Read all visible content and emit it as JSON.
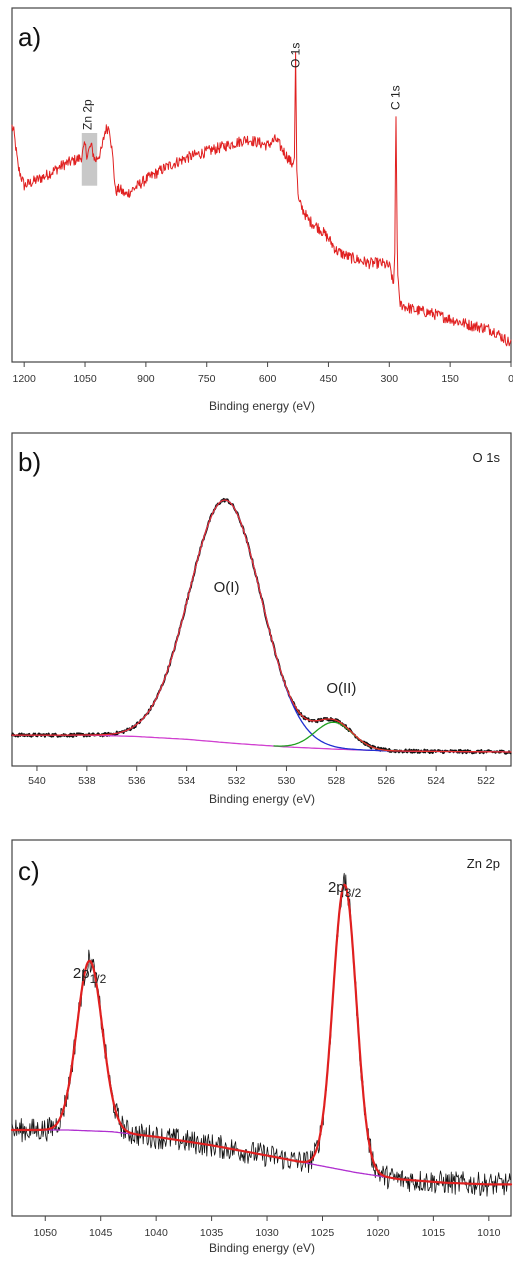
{
  "chart_data": [
    {
      "type": "line",
      "panel_letter": "a)",
      "xlabel": "Binding energy (eV)",
      "ylabel": "",
      "xlim": [
        1230,
        0
      ],
      "x_ticks": [
        1200,
        1050,
        900,
        750,
        600,
        450,
        300,
        150,
        0
      ],
      "grid": false,
      "annotations": [
        {
          "text": "Zn 2p",
          "x": 1044
        },
        {
          "text": "O 1s",
          "x": 531
        },
        {
          "text": "C 1s",
          "x": 285
        }
      ],
      "highlight_band": [
        1058,
        1020
      ],
      "series": [
        {
          "color": "#e02020",
          "x": [
            1230,
            1225,
            1215,
            1200,
            1150,
            1100,
            1060,
            1050,
            1045,
            1035,
            1025,
            1010,
            1000,
            990,
            980,
            975,
            965,
            950,
            900,
            850,
            800,
            750,
            700,
            650,
            600,
            580,
            560,
            540,
            534,
            531,
            528,
            524,
            520,
            500,
            470,
            450,
            430,
            400,
            350,
            320,
            300,
            295,
            290,
            286,
            284,
            280,
            275,
            260,
            240,
            200,
            150,
            100,
            60,
            40,
            20,
            10,
            0
          ],
          "y": [
            0.72,
            0.7,
            0.59,
            0.53,
            0.56,
            0.6,
            0.62,
            0.66,
            0.63,
            0.66,
            0.61,
            0.64,
            0.71,
            0.72,
            0.6,
            0.51,
            0.52,
            0.5,
            0.55,
            0.59,
            0.62,
            0.64,
            0.66,
            0.68,
            0.66,
            0.68,
            0.64,
            0.6,
            0.62,
            0.96,
            0.58,
            0.48,
            0.47,
            0.42,
            0.39,
            0.36,
            0.32,
            0.3,
            0.28,
            0.28,
            0.27,
            0.25,
            0.2,
            0.33,
            0.82,
            0.28,
            0.15,
            0.14,
            0.13,
            0.12,
            0.1,
            0.08,
            0.07,
            0.06,
            0.04,
            0.03,
            0.02
          ],
          "noise": 0.018
        }
      ]
    },
    {
      "type": "line",
      "panel_letter": "b)",
      "title": "O 1s",
      "xlabel": "Binding energy (eV)",
      "ylabel": "",
      "xlim": [
        541,
        521
      ],
      "x_ticks": [
        540,
        538,
        536,
        534,
        532,
        530,
        528,
        526,
        524,
        522
      ],
      "grid": false,
      "annotations": [
        {
          "text": "O(I)",
          "x": 532.4,
          "y": 0.52
        },
        {
          "text": "O(II)",
          "x": 527.8,
          "y": 0.27
        }
      ],
      "series": [
        {
          "role": "baseline",
          "color": "#d040d0",
          "x": [
            541,
            538,
            536,
            534,
            532,
            530,
            528,
            526,
            524,
            521
          ],
          "y": [
            0.06,
            0.06,
            0.055,
            0.045,
            0.03,
            0.018,
            0.01,
            0.004,
            0.002,
            0.0
          ]
        },
        {
          "role": "component O(I)",
          "color": "#2030d0",
          "center": 532.45,
          "height": 0.86,
          "sigma": 1.45,
          "range": [
            537,
            526
          ]
        },
        {
          "role": "component O(II)",
          "color": "#20a020",
          "center": 528.1,
          "height": 0.095,
          "sigma": 0.75,
          "range": [
            530.5,
            525.5
          ]
        },
        {
          "role": "envelope",
          "color": "#e83030",
          "range": [
            541,
            521
          ]
        },
        {
          "role": "measured",
          "color": "#111111",
          "range": [
            541,
            521
          ],
          "noise": 0.006
        }
      ]
    },
    {
      "type": "line",
      "panel_letter": "c)",
      "title": "Zn 2p",
      "xlabel": "Binding energy (eV)",
      "ylabel": "",
      "xlim": [
        1053,
        1008
      ],
      "x_ticks": [
        1050,
        1045,
        1040,
        1035,
        1030,
        1025,
        1020,
        1015,
        1010
      ],
      "grid": false,
      "annotations": [
        {
          "text": "2p",
          "sub": "1/2",
          "x": 1046.0
        },
        {
          "text": "2p",
          "sub": "3/2",
          "x": 1023.0
        }
      ],
      "series": [
        {
          "role": "baseline",
          "color": "#b030d0",
          "x": [
            1053,
            1048,
            1044,
            1040,
            1035,
            1030,
            1026,
            1022,
            1018,
            1014,
            1010,
            1008
          ],
          "y": [
            0.2,
            0.2,
            0.195,
            0.18,
            0.155,
            0.125,
            0.1,
            0.075,
            0.055,
            0.045,
            0.04,
            0.04
          ]
        },
        {
          "role": "component 2p1/2",
          "color": "#20a020",
          "center": 1046.0,
          "height": 0.5,
          "sigma": 1.15,
          "range": [
            1050.5,
            1041.5
          ]
        },
        {
          "role": "component 2p3/2",
          "color": "#2040d0",
          "center": 1023.0,
          "height": 0.84,
          "sigma": 1.05,
          "range": [
            1027.5,
            1018.5
          ]
        },
        {
          "role": "envelope",
          "color": "#e02020",
          "range": [
            1053,
            1008
          ]
        },
        {
          "role": "measured",
          "color": "#111111",
          "range": [
            1053,
            1008
          ],
          "noise": 0.035
        }
      ]
    }
  ]
}
